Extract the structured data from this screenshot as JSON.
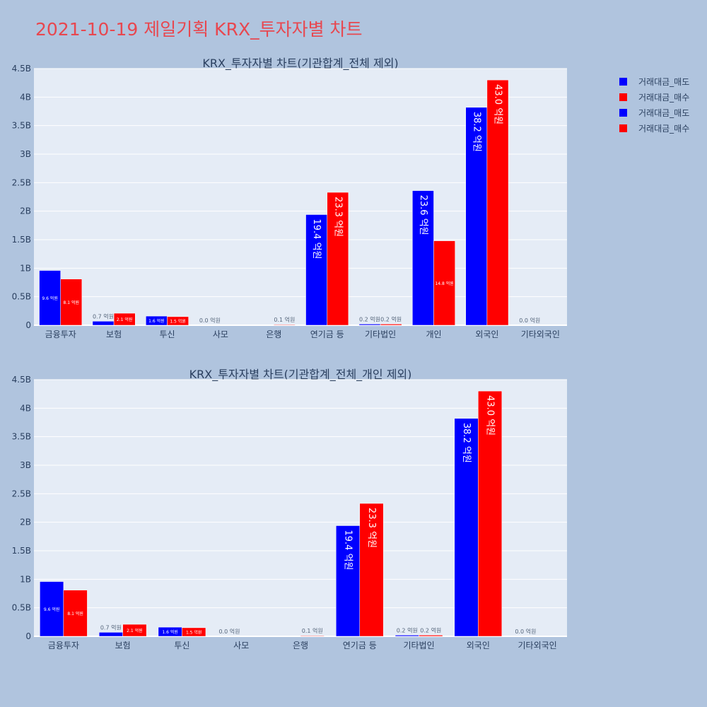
{
  "page": {
    "title": "2021-10-19 제일기획 KRX_투자자별 차트"
  },
  "colors": {
    "sell": "#0000ff",
    "buy": "#ff0000",
    "plot_bg": "#e5ecf6",
    "page_bg": "#b0c4de",
    "text": "#2a3f5f"
  },
  "legend": {
    "items": [
      {
        "label": "거래대금_매도",
        "color": "#0000ff"
      },
      {
        "label": "거래대금_매수",
        "color": "#ff0000"
      },
      {
        "label": "거래대금_매도",
        "color": "#0000ff"
      },
      {
        "label": "거래대금_매수",
        "color": "#ff0000"
      }
    ]
  },
  "chart_data": [
    {
      "type": "bar",
      "title": "KRX_투자자별 차트(기관합계_전체 제외)",
      "categories": [
        "금융투자",
        "보험",
        "투신",
        "사모",
        "은행",
        "연기금 등",
        "기타법인",
        "개인",
        "외국인",
        "기타외국인"
      ],
      "yticks": [
        "0",
        "0.5B",
        "1B",
        "1.5B",
        "2B",
        "2.5B",
        "3B",
        "3.5B",
        "4B",
        "4.5B"
      ],
      "ylim": [
        0,
        4.5
      ],
      "yunit": "B",
      "series": [
        {
          "name": "거래대금_매도",
          "color": "#0000ff",
          "values": [
            0.96,
            0.07,
            0.16,
            0.0,
            0.0,
            1.94,
            0.02,
            2.36,
            3.82,
            0.0
          ],
          "labels": [
            "9.6 억원",
            "0.7 억원",
            "1.6 억원",
            "0.0 억원",
            "",
            "19.4 억원",
            "0.2 억원",
            "23.6 억원",
            "38.2 억원",
            "0.0 억원"
          ]
        },
        {
          "name": "거래대금_매수",
          "color": "#ff0000",
          "values": [
            0.81,
            0.21,
            0.15,
            0.0,
            0.01,
            2.33,
            0.02,
            1.48,
            4.3,
            0.0
          ],
          "labels": [
            "8.1 억원",
            "2.1 억원",
            "1.5 억원",
            "",
            "0.1 억원",
            "23.3 억원",
            "0.2 억원",
            "14.8 억원",
            "43.0 억원",
            ""
          ]
        }
      ]
    },
    {
      "type": "bar",
      "title": "KRX_투자자별 차트(기관합계_전체_개인 제외)",
      "categories": [
        "금융투자",
        "보험",
        "투신",
        "사모",
        "은행",
        "연기금 등",
        "기타법인",
        "외국인",
        "기타외국인"
      ],
      "yticks": [
        "0",
        "0.5B",
        "1B",
        "1.5B",
        "2B",
        "2.5B",
        "3B",
        "3.5B",
        "4B",
        "4.5B"
      ],
      "ylim": [
        0,
        4.5
      ],
      "yunit": "B",
      "series": [
        {
          "name": "거래대금_매도",
          "color": "#0000ff",
          "values": [
            0.96,
            0.07,
            0.16,
            0.0,
            0.0,
            1.94,
            0.02,
            3.82,
            0.0
          ],
          "labels": [
            "9.6 억원",
            "0.7 억원",
            "1.6 억원",
            "0.0 억원",
            "",
            "19.4 억원",
            "0.2 억원",
            "38.2 억원",
            "0.0 억원"
          ]
        },
        {
          "name": "거래대금_매수",
          "color": "#ff0000",
          "values": [
            0.81,
            0.21,
            0.15,
            0.0,
            0.01,
            2.33,
            0.02,
            4.3,
            0.0
          ],
          "labels": [
            "8.1 억원",
            "2.1 억원",
            "1.5 억원",
            "",
            "0.1 억원",
            "23.3 억원",
            "0.2 억원",
            "43.0 억원",
            ""
          ]
        }
      ]
    }
  ]
}
